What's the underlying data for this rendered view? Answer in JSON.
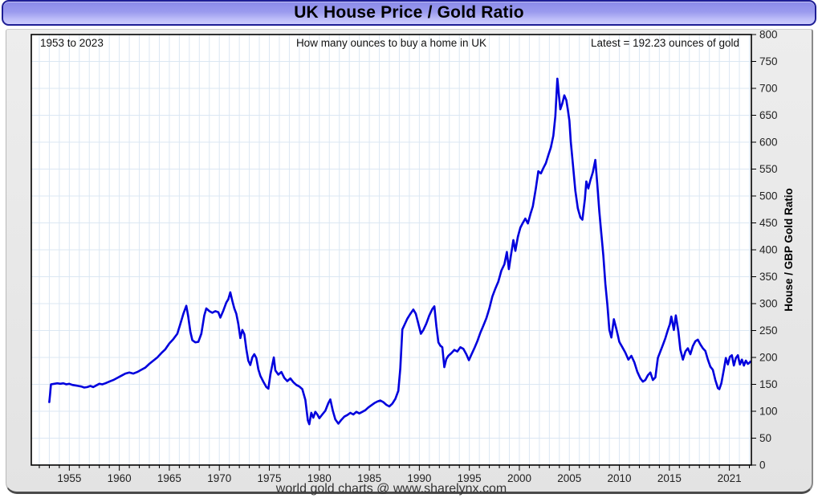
{
  "window": {
    "title": "UK House Price / Gold Ratio"
  },
  "annotations": {
    "range": "1953 to 2023",
    "subtitle": "How many ounces to buy a home in UK",
    "latest": "Latest = 192.23 ounces of gold"
  },
  "footer": {
    "credit": "world gold charts @ www.sharelynx.com"
  },
  "colors": {
    "line": "#0000dd",
    "grid": "#dbe7f3",
    "plot_border": "#000000",
    "tick": "#000000",
    "tick_label": "#222222",
    "titlebar_border": "#1f1f96",
    "panel_bg": "#e8e8e8"
  },
  "chart_data": {
    "type": "line",
    "title": "UK House Price / Gold Ratio",
    "subtitle": "How many ounces to buy a home in UK",
    "date_range": "1953 to 2023",
    "latest_value": 192.23,
    "latest_label": "Latest = 192.23 ounces of gold",
    "xlabel": "",
    "ylabel": "House / GBP Gold Ratio",
    "x_range": [
      1951.2,
      2023.2
    ],
    "ylim": [
      0,
      800
    ],
    "grid": true,
    "legend_position": "none",
    "y_ticks": [
      0,
      50,
      100,
      150,
      200,
      250,
      300,
      350,
      400,
      450,
      500,
      550,
      600,
      650,
      700,
      750,
      800
    ],
    "x_ticks": [
      {
        "year": 1955,
        "label": "1955"
      },
      {
        "year": 1960,
        "label": "1960"
      },
      {
        "year": 1965,
        "label": "1965"
      },
      {
        "year": 1970,
        "label": "1970"
      },
      {
        "year": 1975,
        "label": "1975"
      },
      {
        "year": 1980,
        "label": "1980"
      },
      {
        "year": 1985,
        "label": "1985"
      },
      {
        "year": 1990,
        "label": "1990"
      },
      {
        "year": 1995,
        "label": "1995"
      },
      {
        "year": 2000,
        "label": "2000"
      },
      {
        "year": 2005,
        "label": "2005"
      },
      {
        "year": 2010,
        "label": "2010"
      },
      {
        "year": 2015,
        "label": "2015"
      },
      {
        "year": 2021,
        "label": "2021"
      }
    ],
    "x_minor_tick_every": 1,
    "series": [
      {
        "name": "House / GBP Gold Ratio",
        "color": "#0000dd",
        "points": [
          [
            1953.0,
            117
          ],
          [
            1953.08,
            132
          ],
          [
            1953.17,
            150
          ],
          [
            1953.5,
            151
          ],
          [
            1953.8,
            152
          ],
          [
            1954.1,
            151
          ],
          [
            1954.4,
            152
          ],
          [
            1954.7,
            150
          ],
          [
            1955.0,
            151
          ],
          [
            1955.3,
            149
          ],
          [
            1955.6,
            148
          ],
          [
            1955.9,
            147
          ],
          [
            1956.2,
            146
          ],
          [
            1956.5,
            144
          ],
          [
            1956.8,
            145
          ],
          [
            1957.1,
            147
          ],
          [
            1957.4,
            145
          ],
          [
            1957.7,
            148
          ],
          [
            1958.0,
            151
          ],
          [
            1958.3,
            150
          ],
          [
            1958.6,
            152
          ],
          [
            1959.0,
            155
          ],
          [
            1959.4,
            158
          ],
          [
            1959.8,
            162
          ],
          [
            1960.2,
            166
          ],
          [
            1960.6,
            170
          ],
          [
            1961.0,
            172
          ],
          [
            1961.4,
            170
          ],
          [
            1961.8,
            173
          ],
          [
            1962.2,
            177
          ],
          [
            1962.6,
            181
          ],
          [
            1963.0,
            188
          ],
          [
            1963.4,
            194
          ],
          [
            1963.8,
            200
          ],
          [
            1964.2,
            208
          ],
          [
            1964.6,
            215
          ],
          [
            1965.0,
            226
          ],
          [
            1965.4,
            234
          ],
          [
            1965.8,
            244
          ],
          [
            1966.1,
            262
          ],
          [
            1966.4,
            281
          ],
          [
            1966.7,
            296
          ],
          [
            1966.9,
            275
          ],
          [
            1967.1,
            248
          ],
          [
            1967.3,
            232
          ],
          [
            1967.6,
            228
          ],
          [
            1967.9,
            229
          ],
          [
            1968.2,
            244
          ],
          [
            1968.5,
            278
          ],
          [
            1968.7,
            291
          ],
          [
            1969.0,
            286
          ],
          [
            1969.3,
            283
          ],
          [
            1969.6,
            286
          ],
          [
            1969.9,
            284
          ],
          [
            1970.1,
            274
          ],
          [
            1970.4,
            287
          ],
          [
            1970.7,
            302
          ],
          [
            1970.9,
            308
          ],
          [
            1971.1,
            321
          ],
          [
            1971.3,
            305
          ],
          [
            1971.5,
            291
          ],
          [
            1971.7,
            281
          ],
          [
            1971.9,
            262
          ],
          [
            1972.1,
            236
          ],
          [
            1972.3,
            251
          ],
          [
            1972.5,
            243
          ],
          [
            1972.7,
            215
          ],
          [
            1972.9,
            194
          ],
          [
            1973.1,
            186
          ],
          [
            1973.3,
            200
          ],
          [
            1973.5,
            206
          ],
          [
            1973.7,
            199
          ],
          [
            1973.9,
            178
          ],
          [
            1974.1,
            166
          ],
          [
            1974.4,
            155
          ],
          [
            1974.7,
            145
          ],
          [
            1974.9,
            142
          ],
          [
            1975.1,
            168
          ],
          [
            1975.3,
            186
          ],
          [
            1975.45,
            200
          ],
          [
            1975.6,
            176
          ],
          [
            1975.9,
            168
          ],
          [
            1976.2,
            173
          ],
          [
            1976.5,
            162
          ],
          [
            1976.8,
            156
          ],
          [
            1977.1,
            161
          ],
          [
            1977.4,
            154
          ],
          [
            1977.7,
            149
          ],
          [
            1978.0,
            146
          ],
          [
            1978.3,
            141
          ],
          [
            1978.6,
            121
          ],
          [
            1978.85,
            83
          ],
          [
            1979.0,
            76
          ],
          [
            1979.2,
            97
          ],
          [
            1979.4,
            88
          ],
          [
            1979.6,
            99
          ],
          [
            1979.8,
            94
          ],
          [
            1980.0,
            87
          ],
          [
            1980.3,
            94
          ],
          [
            1980.6,
            101
          ],
          [
            1980.9,
            115
          ],
          [
            1981.1,
            122
          ],
          [
            1981.35,
            101
          ],
          [
            1981.6,
            85
          ],
          [
            1981.9,
            77
          ],
          [
            1982.2,
            84
          ],
          [
            1982.5,
            90
          ],
          [
            1982.8,
            93
          ],
          [
            1983.1,
            97
          ],
          [
            1983.4,
            94
          ],
          [
            1983.7,
            99
          ],
          [
            1984.0,
            96
          ],
          [
            1984.3,
            99
          ],
          [
            1984.6,
            102
          ],
          [
            1984.9,
            107
          ],
          [
            1985.2,
            111
          ],
          [
            1985.5,
            115
          ],
          [
            1985.8,
            118
          ],
          [
            1986.1,
            120
          ],
          [
            1986.4,
            117
          ],
          [
            1986.7,
            112
          ],
          [
            1987.0,
            109
          ],
          [
            1987.3,
            114
          ],
          [
            1987.6,
            123
          ],
          [
            1987.9,
            138
          ],
          [
            1988.1,
            180
          ],
          [
            1988.3,
            252
          ],
          [
            1988.55,
            262
          ],
          [
            1988.8,
            272
          ],
          [
            1989.1,
            281
          ],
          [
            1989.4,
            289
          ],
          [
            1989.65,
            281
          ],
          [
            1989.9,
            263
          ],
          [
            1990.15,
            244
          ],
          [
            1990.4,
            251
          ],
          [
            1990.7,
            263
          ],
          [
            1991.0,
            278
          ],
          [
            1991.3,
            290
          ],
          [
            1991.5,
            295
          ],
          [
            1991.7,
            258
          ],
          [
            1991.9,
            228
          ],
          [
            1992.1,
            222
          ],
          [
            1992.3,
            219
          ],
          [
            1992.5,
            182
          ],
          [
            1992.7,
            197
          ],
          [
            1992.9,
            203
          ],
          [
            1993.2,
            208
          ],
          [
            1993.5,
            214
          ],
          [
            1993.8,
            211
          ],
          [
            1994.1,
            219
          ],
          [
            1994.4,
            216
          ],
          [
            1994.7,
            206
          ],
          [
            1994.95,
            195
          ],
          [
            1995.2,
            205
          ],
          [
            1995.5,
            217
          ],
          [
            1995.8,
            230
          ],
          [
            1996.1,
            246
          ],
          [
            1996.4,
            259
          ],
          [
            1996.7,
            273
          ],
          [
            1997.0,
            291
          ],
          [
            1997.3,
            313
          ],
          [
            1997.6,
            328
          ],
          [
            1997.9,
            341
          ],
          [
            1998.2,
            361
          ],
          [
            1998.5,
            373
          ],
          [
            1998.75,
            396
          ],
          [
            1998.95,
            364
          ],
          [
            1999.15,
            389
          ],
          [
            1999.4,
            418
          ],
          [
            1999.6,
            398
          ],
          [
            1999.85,
            424
          ],
          [
            2000.1,
            441
          ],
          [
            2000.35,
            450
          ],
          [
            2000.6,
            458
          ],
          [
            2000.85,
            449
          ],
          [
            2001.1,
            466
          ],
          [
            2001.35,
            481
          ],
          [
            2001.65,
            514
          ],
          [
            2001.9,
            546
          ],
          [
            2002.15,
            542
          ],
          [
            2002.4,
            552
          ],
          [
            2002.65,
            561
          ],
          [
            2002.9,
            576
          ],
          [
            2003.15,
            590
          ],
          [
            2003.4,
            612
          ],
          [
            2003.6,
            648
          ],
          [
            2003.8,
            718
          ],
          [
            2003.95,
            688
          ],
          [
            2004.1,
            661
          ],
          [
            2004.3,
            672
          ],
          [
            2004.5,
            687
          ],
          [
            2004.7,
            678
          ],
          [
            2004.85,
            660
          ],
          [
            2005.0,
            640
          ],
          [
            2005.15,
            600
          ],
          [
            2005.35,
            560
          ],
          [
            2005.6,
            510
          ],
          [
            2005.85,
            477
          ],
          [
            2006.1,
            460
          ],
          [
            2006.3,
            456
          ],
          [
            2006.55,
            494
          ],
          [
            2006.7,
            527
          ],
          [
            2006.9,
            514
          ],
          [
            2007.1,
            529
          ],
          [
            2007.35,
            544
          ],
          [
            2007.6,
            567
          ],
          [
            2007.8,
            521
          ],
          [
            2008.0,
            471
          ],
          [
            2008.2,
            430
          ],
          [
            2008.4,
            389
          ],
          [
            2008.6,
            337
          ],
          [
            2008.8,
            298
          ],
          [
            2009.0,
            251
          ],
          [
            2009.2,
            237
          ],
          [
            2009.45,
            271
          ],
          [
            2009.7,
            253
          ],
          [
            2010.0,
            229
          ],
          [
            2010.3,
            219
          ],
          [
            2010.6,
            209
          ],
          [
            2010.9,
            196
          ],
          [
            2011.2,
            203
          ],
          [
            2011.5,
            191
          ],
          [
            2011.8,
            173
          ],
          [
            2012.1,
            161
          ],
          [
            2012.35,
            155
          ],
          [
            2012.6,
            158
          ],
          [
            2012.85,
            167
          ],
          [
            2013.1,
            172
          ],
          [
            2013.35,
            158
          ],
          [
            2013.6,
            163
          ],
          [
            2013.85,
            199
          ],
          [
            2014.1,
            211
          ],
          [
            2014.35,
            223
          ],
          [
            2014.6,
            236
          ],
          [
            2014.85,
            251
          ],
          [
            2015.05,
            262
          ],
          [
            2015.2,
            276
          ],
          [
            2015.45,
            251
          ],
          [
            2015.65,
            278
          ],
          [
            2015.9,
            248
          ],
          [
            2016.1,
            215
          ],
          [
            2016.35,
            196
          ],
          [
            2016.6,
            211
          ],
          [
            2016.85,
            217
          ],
          [
            2017.1,
            206
          ],
          [
            2017.35,
            221
          ],
          [
            2017.6,
            230
          ],
          [
            2017.85,
            233
          ],
          [
            2018.1,
            224
          ],
          [
            2018.35,
            217
          ],
          [
            2018.6,
            212
          ],
          [
            2018.85,
            196
          ],
          [
            2019.1,
            183
          ],
          [
            2019.35,
            177
          ],
          [
            2019.6,
            158
          ],
          [
            2019.85,
            143
          ],
          [
            2020.0,
            141
          ],
          [
            2020.2,
            152
          ],
          [
            2020.45,
            177
          ],
          [
            2020.65,
            199
          ],
          [
            2020.85,
            187
          ],
          [
            2021.05,
            201
          ],
          [
            2021.25,
            204
          ],
          [
            2021.45,
            185
          ],
          [
            2021.65,
            199
          ],
          [
            2021.85,
            204
          ],
          [
            2022.05,
            187
          ],
          [
            2022.25,
            196
          ],
          [
            2022.45,
            185
          ],
          [
            2022.65,
            194
          ],
          [
            2022.85,
            188
          ],
          [
            2023.0,
            190
          ],
          [
            2023.1,
            192.23
          ]
        ]
      }
    ]
  }
}
